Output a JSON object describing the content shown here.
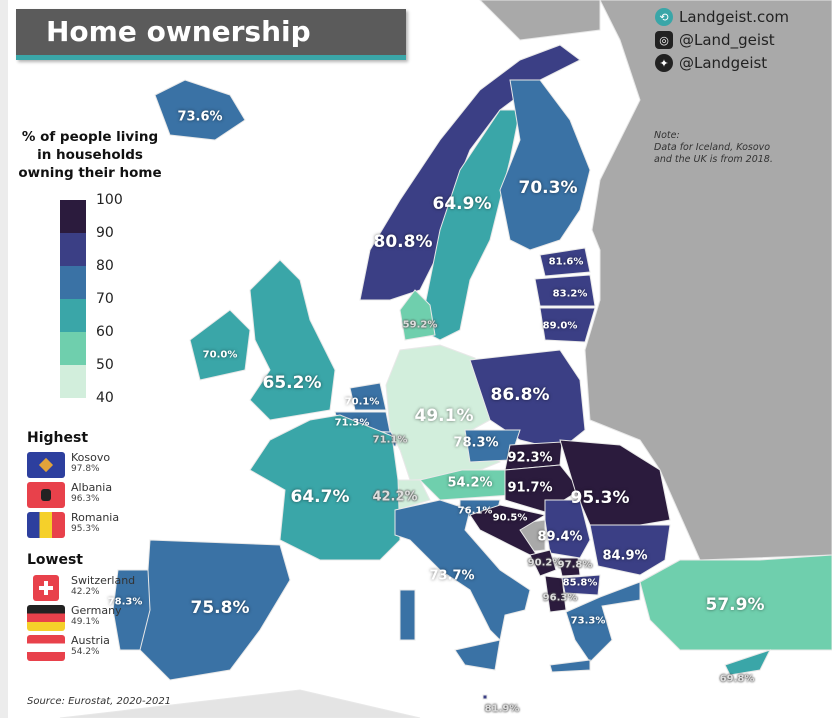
{
  "title": "Home ownership",
  "social": {
    "website": "Landgeist.com",
    "instagram": "@Land_geist",
    "twitter": "@Landgeist"
  },
  "note": {
    "heading": "Note:",
    "line1": "Data for Iceland, Kosovo",
    "line2": "and the UK is from 2018."
  },
  "legend": {
    "title_lines": [
      "% of people living",
      "in households",
      "owning their home"
    ],
    "ticks": [
      "100",
      "90",
      "80",
      "70",
      "60",
      "50",
      "40"
    ],
    "colors": [
      "#2b1b3d",
      "#3b3f85",
      "#3a72a5",
      "#3aa6a8",
      "#6fcfad",
      "#d2eedc"
    ],
    "no_data_color": "#a9a9a9"
  },
  "highest": {
    "heading": "Highest",
    "items": [
      {
        "name": "Kosovo",
        "value": "97.8%"
      },
      {
        "name": "Albania",
        "value": "96.3%"
      },
      {
        "name": "Romania",
        "value": "95.3%"
      }
    ]
  },
  "lowest": {
    "heading": "Lowest",
    "items": [
      {
        "name": "Switzerland",
        "value": "42.2%"
      },
      {
        "name": "Germany",
        "value": "49.1%"
      },
      {
        "name": "Austria",
        "value": "54.2%"
      }
    ]
  },
  "source": "Source: Eurostat, 2020-2021",
  "regions": [
    {
      "id": "iceland",
      "label": "73.6%",
      "value": 73.6
    },
    {
      "id": "norway",
      "label": "80.8%",
      "value": 80.8
    },
    {
      "id": "sweden",
      "label": "64.9%",
      "value": 64.9
    },
    {
      "id": "finland",
      "label": "70.3%",
      "value": 70.3
    },
    {
      "id": "estonia",
      "label": "81.6%",
      "value": 81.6
    },
    {
      "id": "latvia",
      "label": "83.2%",
      "value": 83.2
    },
    {
      "id": "lithuania",
      "label": "89.0%",
      "value": 89.0
    },
    {
      "id": "denmark",
      "label": "59.2%",
      "value": 59.2
    },
    {
      "id": "ireland",
      "label": "70.0%",
      "value": 70.0
    },
    {
      "id": "uk",
      "label": "65.2%",
      "value": 65.2
    },
    {
      "id": "netherlands",
      "label": "70.1%",
      "value": 70.1
    },
    {
      "id": "belgium",
      "label": "71.3%",
      "value": 71.3
    },
    {
      "id": "luxembourg",
      "label": "71.1%",
      "value": 71.1
    },
    {
      "id": "germany",
      "label": "49.1%",
      "value": 49.1
    },
    {
      "id": "poland",
      "label": "86.8%",
      "value": 86.8
    },
    {
      "id": "czechia",
      "label": "78.3%",
      "value": 78.3
    },
    {
      "id": "slovakia",
      "label": "92.3%",
      "value": 92.3
    },
    {
      "id": "austria",
      "label": "54.2%",
      "value": 54.2
    },
    {
      "id": "hungary",
      "label": "91.7%",
      "value": 91.7
    },
    {
      "id": "romania",
      "label": "95.3%",
      "value": 95.3
    },
    {
      "id": "switzerland",
      "label": "42.2%",
      "value": 42.2
    },
    {
      "id": "france",
      "label": "64.7%",
      "value": 64.7
    },
    {
      "id": "slovenia",
      "label": "76.1%",
      "value": 76.1
    },
    {
      "id": "croatia",
      "label": "90.5%",
      "value": 90.5
    },
    {
      "id": "serbia",
      "label": "89.4%",
      "value": 89.4
    },
    {
      "id": "bulgaria",
      "label": "84.9%",
      "value": 84.9
    },
    {
      "id": "montenegro",
      "label": "90.2%",
      "value": 90.2
    },
    {
      "id": "kosovo",
      "label": "97.8%",
      "value": 97.8
    },
    {
      "id": "north-macedonia",
      "label": "85.8%",
      "value": 85.8
    },
    {
      "id": "albania",
      "label": "96.3%",
      "value": 96.3
    },
    {
      "id": "italy",
      "label": "73.7%",
      "value": 73.7
    },
    {
      "id": "greece",
      "label": "73.3%",
      "value": 73.3
    },
    {
      "id": "turkey",
      "label": "57.9%",
      "value": 57.9
    },
    {
      "id": "portugal",
      "label": "78.3%",
      "value": 78.3
    },
    {
      "id": "spain",
      "label": "75.8%",
      "value": 75.8
    },
    {
      "id": "malta",
      "label": "81.9%",
      "value": 81.9
    },
    {
      "id": "cyprus",
      "label": "69.8%",
      "value": 69.8
    }
  ]
}
